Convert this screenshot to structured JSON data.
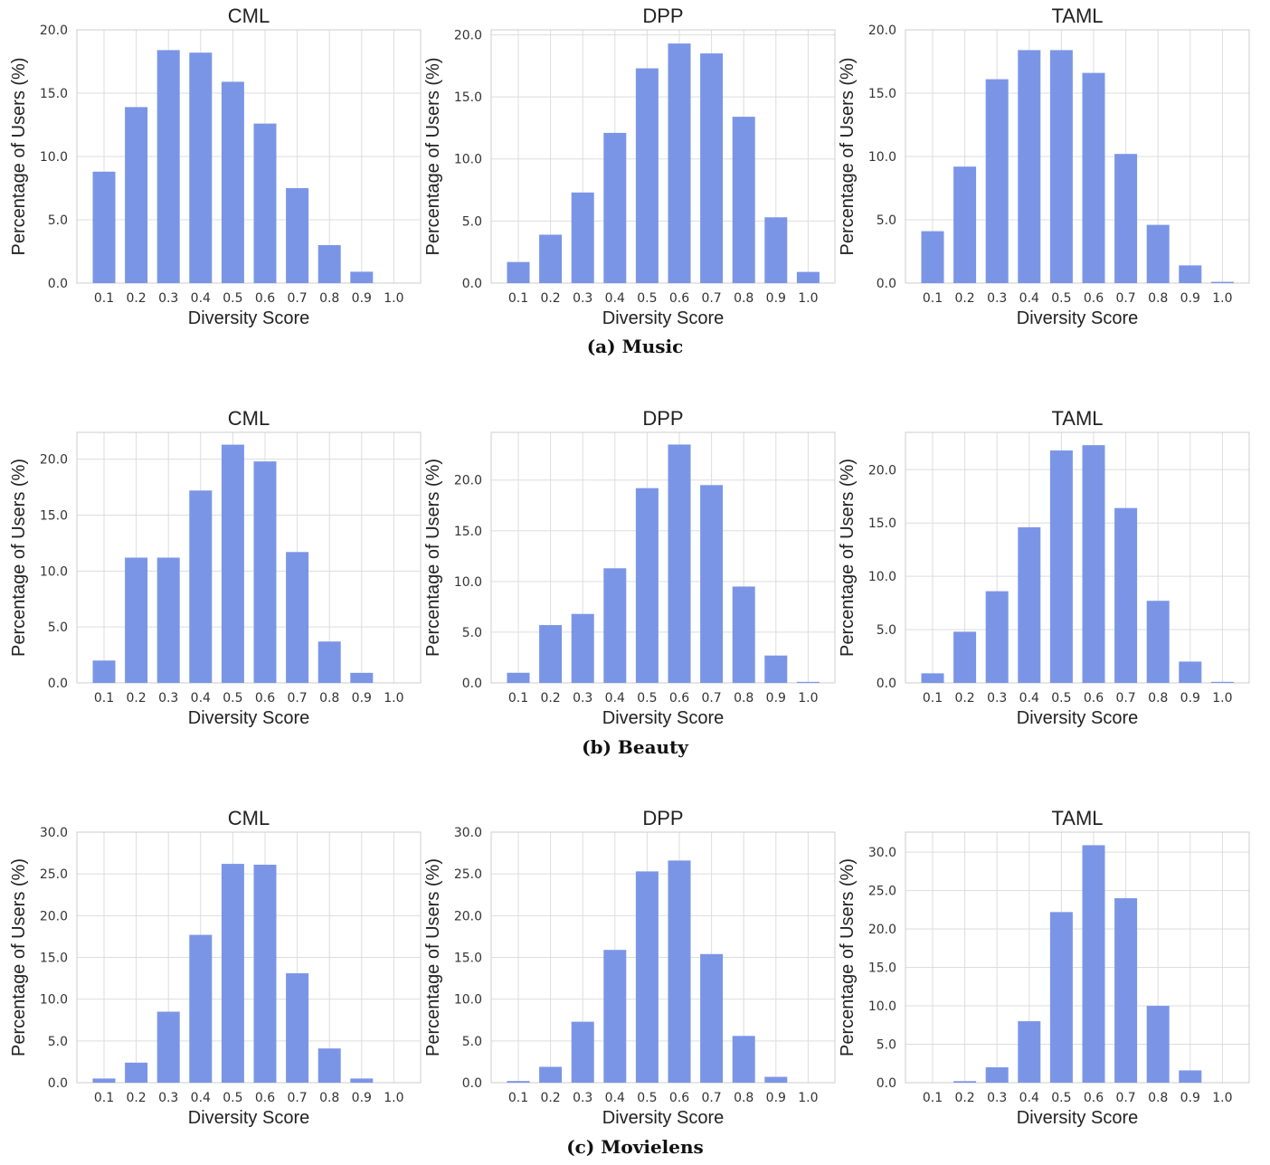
{
  "captions": [
    "(a) Music",
    "(b) Beauty",
    "(c) Movielens"
  ],
  "style": {
    "bar_color": "#7b95e6",
    "grid_color": "#dddddd",
    "frame_color": "#cccccc"
  },
  "chart_data": [
    {
      "type": "bar",
      "title": "CML",
      "xlabel": "Diversity Score",
      "ylabel": "Percentage of Users (%)",
      "categories": [
        "0.1",
        "0.2",
        "0.3",
        "0.4",
        "0.5",
        "0.6",
        "0.7",
        "0.8",
        "0.9",
        "1.0"
      ],
      "values": [
        8.8,
        13.9,
        18.4,
        18.2,
        15.9,
        12.6,
        7.5,
        3.0,
        0.9,
        0.0
      ],
      "ylim": [
        0,
        20
      ],
      "yticks": [
        "0.0",
        "5.0",
        "10.0",
        "15.0",
        "20.0"
      ],
      "grid": true
    },
    {
      "type": "bar",
      "title": "DPP",
      "xlabel": "Diversity Score",
      "ylabel": "Percentage of Users (%)",
      "categories": [
        "0.1",
        "0.2",
        "0.3",
        "0.4",
        "0.5",
        "0.6",
        "0.7",
        "0.8",
        "0.9",
        "1.0"
      ],
      "values": [
        1.7,
        3.9,
        7.3,
        12.1,
        17.3,
        19.3,
        18.5,
        13.4,
        5.3,
        0.9
      ],
      "ylim": [
        0,
        20.4
      ],
      "yticks": [
        "0.0",
        "5.0",
        "10.0",
        "15.0",
        "20.0"
      ],
      "grid": true
    },
    {
      "type": "bar",
      "title": "TAML",
      "xlabel": "Diversity Score",
      "ylabel": "Percentage of Users (%)",
      "categories": [
        "0.1",
        "0.2",
        "0.3",
        "0.4",
        "0.5",
        "0.6",
        "0.7",
        "0.8",
        "0.9",
        "1.0"
      ],
      "values": [
        4.1,
        9.2,
        16.1,
        18.4,
        18.4,
        16.6,
        10.2,
        4.6,
        1.4,
        0.1
      ],
      "ylim": [
        0,
        20
      ],
      "yticks": [
        "0.0",
        "5.0",
        "10.0",
        "15.0",
        "20.0"
      ],
      "grid": true
    },
    {
      "type": "bar",
      "title": "CML",
      "xlabel": "Diversity Score",
      "ylabel": "Percentage of Users (%)",
      "categories": [
        "0.1",
        "0.2",
        "0.3",
        "0.4",
        "0.5",
        "0.6",
        "0.7",
        "0.8",
        "0.9",
        "1.0"
      ],
      "values": [
        2.0,
        11.2,
        11.2,
        17.2,
        21.3,
        19.8,
        11.7,
        3.7,
        0.9,
        0.0
      ],
      "ylim": [
        0,
        22.4
      ],
      "yticks": [
        "0.0",
        "5.0",
        "10.0",
        "15.0",
        "20.0"
      ],
      "grid": true
    },
    {
      "type": "bar",
      "title": "DPP",
      "xlabel": "Diversity Score",
      "ylabel": "Percentage of Users (%)",
      "categories": [
        "0.1",
        "0.2",
        "0.3",
        "0.4",
        "0.5",
        "0.6",
        "0.7",
        "0.8",
        "0.9",
        "1.0"
      ],
      "values": [
        1.0,
        5.7,
        6.8,
        11.3,
        19.2,
        23.5,
        19.5,
        9.5,
        2.7,
        0.1
      ],
      "ylim": [
        0,
        24.7
      ],
      "yticks": [
        "0.0",
        "5.0",
        "10.0",
        "15.0",
        "20.0"
      ],
      "grid": true
    },
    {
      "type": "bar",
      "title": "TAML",
      "xlabel": "Diversity Score",
      "ylabel": "Percentage of Users (%)",
      "categories": [
        "0.1",
        "0.2",
        "0.3",
        "0.4",
        "0.5",
        "0.6",
        "0.7",
        "0.8",
        "0.9",
        "1.0"
      ],
      "values": [
        0.9,
        4.8,
        8.6,
        14.6,
        21.8,
        22.3,
        16.4,
        7.7,
        2.0,
        0.1
      ],
      "ylim": [
        0,
        23.5
      ],
      "yticks": [
        "0.0",
        "5.0",
        "10.0",
        "15.0",
        "20.0"
      ],
      "grid": true
    },
    {
      "type": "bar",
      "title": "CML",
      "xlabel": "Diversity Score",
      "ylabel": "Percentage of Users (%)",
      "categories": [
        "0.1",
        "0.2",
        "0.3",
        "0.4",
        "0.5",
        "0.6",
        "0.7",
        "0.8",
        "0.9",
        "1.0"
      ],
      "values": [
        0.5,
        2.4,
        8.5,
        17.7,
        26.2,
        26.1,
        13.1,
        4.1,
        0.5,
        0.0
      ],
      "ylim": [
        0,
        30
      ],
      "yticks": [
        "0.0",
        "5.0",
        "10.0",
        "15.0",
        "20.0",
        "25.0",
        "30.0"
      ],
      "grid": true
    },
    {
      "type": "bar",
      "title": "DPP",
      "xlabel": "Diversity Score",
      "ylabel": "Percentage of Users (%)",
      "categories": [
        "0.1",
        "0.2",
        "0.3",
        "0.4",
        "0.5",
        "0.6",
        "0.7",
        "0.8",
        "0.9",
        "1.0"
      ],
      "values": [
        0.2,
        1.9,
        7.3,
        15.9,
        25.3,
        26.6,
        15.4,
        5.6,
        0.7,
        0.0
      ],
      "ylim": [
        0,
        30
      ],
      "yticks": [
        "0.0",
        "5.0",
        "10.0",
        "15.0",
        "20.0",
        "25.0",
        "30.0"
      ],
      "grid": true
    },
    {
      "type": "bar",
      "title": "TAML",
      "xlabel": "Diversity Score",
      "ylabel": "Percentage of Users (%)",
      "categories": [
        "0.1",
        "0.2",
        "0.3",
        "0.4",
        "0.5",
        "0.6",
        "0.7",
        "0.8",
        "0.9",
        "1.0"
      ],
      "values": [
        0.0,
        0.2,
        2.0,
        8.0,
        22.2,
        30.9,
        24.0,
        10.0,
        1.6,
        0.0
      ],
      "ylim": [
        0,
        32.6
      ],
      "yticks": [
        "0.0",
        "5.0",
        "10.0",
        "15.0",
        "20.0",
        "25.0",
        "30.0"
      ],
      "grid": true
    }
  ]
}
